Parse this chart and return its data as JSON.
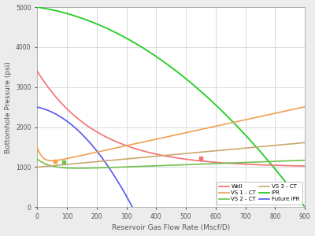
{
  "xlabel": "Reservoir Gas Flow Rate (Mscf/D)",
  "ylabel": "Bottomhole Pressure (psi)",
  "xlim": [
    0,
    900
  ],
  "ylim": [
    0,
    5000
  ],
  "xticks": [
    0,
    100,
    200,
    300,
    400,
    500,
    600,
    700,
    800,
    900
  ],
  "yticks": [
    0,
    1000,
    2000,
    3000,
    4000,
    5000
  ],
  "bg_color": "#ececec",
  "plot_bg": "#ffffff",
  "grid_color": "#cccccc",
  "well_color": "#f47070",
  "vs1ct_color": "#f0a050",
  "vs2ct_color": "#70c050",
  "vs3ct_color": "#c8a870",
  "ipr_color": "#22cc22",
  "future_ipr_color": "#5555ee",
  "well_marker_x": 550,
  "well_marker_y": 1220,
  "vs2ct_marker_x": 90,
  "vs2ct_marker_y": 1120,
  "vs1ct_marker_x": 60,
  "vs1ct_marker_y": 1145
}
